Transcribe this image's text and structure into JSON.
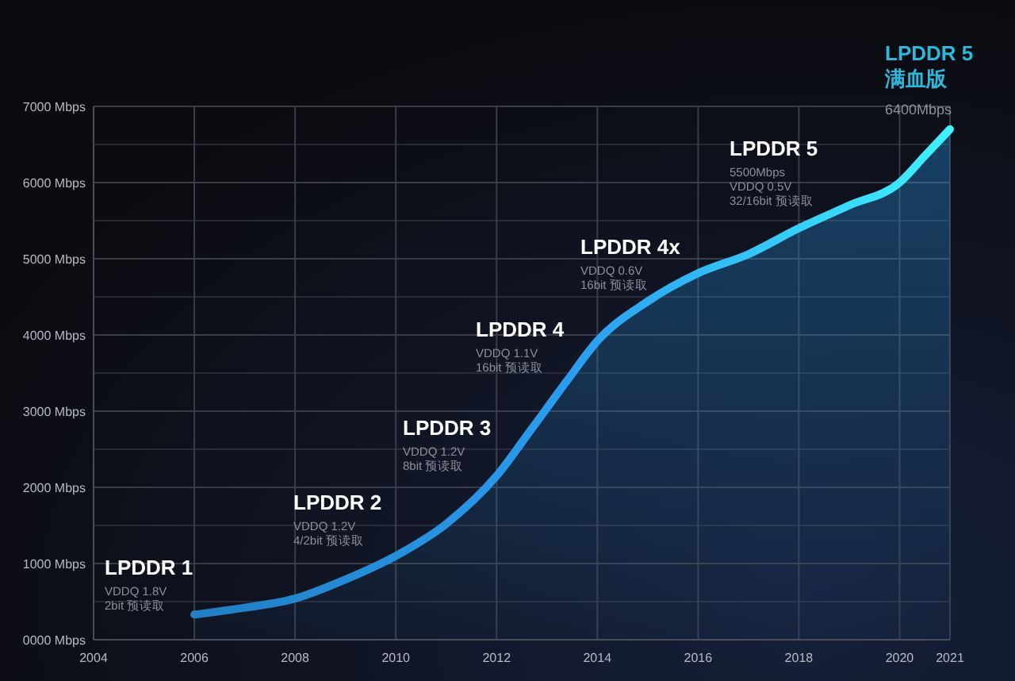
{
  "chart_data": {
    "type": "area",
    "x": [
      2006,
      2007,
      2008,
      2009,
      2010,
      2011,
      2012,
      2012.7,
      2013.4,
      2014,
      2015,
      2016,
      2017,
      2018,
      2019,
      2020,
      2020.5,
      2021
    ],
    "series": [
      {
        "color": "#2a9df0",
        "values": [
          330,
          420,
          540,
          790,
          1100,
          1520,
          2150,
          2770,
          3400,
          3920,
          4440,
          4810,
          5060,
          5400,
          5700,
          6000,
          6350,
          6700
        ]
      }
    ],
    "xlim": [
      2004,
      2021
    ],
    "xticks": [
      2004,
      2006,
      2008,
      2010,
      2012,
      2014,
      2016,
      2018,
      2020,
      2021
    ],
    "ylim": [
      0,
      7000
    ],
    "yticks": [
      {
        "value": 0,
        "label": "0000 Mbps"
      },
      {
        "value": 1000,
        "label": "1000 Mbps"
      },
      {
        "value": 2000,
        "label": "2000 Mbps"
      },
      {
        "value": 3000,
        "label": "3000 Mbps"
      },
      {
        "value": 4000,
        "label": "4000 Mbps"
      },
      {
        "value": 5000,
        "label": "5000 Mbps"
      },
      {
        "value": 6000,
        "label": "6000 Mbps"
      },
      {
        "value": 7000,
        "label": "7000 Mbps"
      }
    ],
    "grid": true,
    "annotations": [
      "LPDDR 1\nVDDQ 1.8V\n2bit 预读取",
      "LPDDR 2\nVDDQ 1.2V\n4/2bit 预读取",
      "LPDDR 3\nVDDQ 1.2V\n8bit 预读取",
      "LPDDR 4\nVDDQ 1.1V\n16bit 预读取",
      "LPDDR 4x\nVDDQ 0.6V\n16bit 预读取",
      "LPDDR 5\n5500Mbps\nVDDQ 0.5V\n32/16bit 预读取",
      "LPDDR 5\n满血版\n6400Mbps"
    ]
  }
}
